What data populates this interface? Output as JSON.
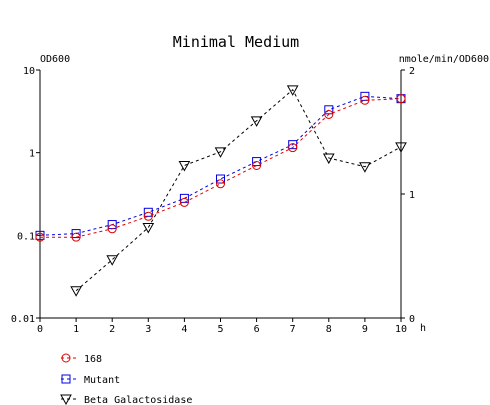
{
  "chart_data": {
    "type": "line",
    "title": "Minimal Medium",
    "xlabel": "h",
    "ylabel_left": "OD600",
    "ylabel_right": "nmole/min/OD600",
    "x_ticks": [
      "0",
      "1",
      "2",
      "3",
      "4",
      "5",
      "6",
      "7",
      "8",
      "9",
      "10"
    ],
    "y_left_ticks": [
      "10",
      "1",
      "0.1",
      "0.01"
    ],
    "y_right_ticks": [
      "2",
      "1",
      "0"
    ],
    "xlim": [
      0,
      10
    ],
    "ylim_left": [
      0.01,
      10
    ],
    "y_left_scale": "log",
    "ylim_right": [
      0,
      2
    ],
    "grid": false,
    "legend_placement": "bottom-left",
    "series": [
      {
        "name": "168",
        "axis": "left",
        "color": "#e00000",
        "marker": "circle",
        "x": [
          0,
          1,
          2,
          3,
          4,
          5,
          6,
          7,
          8,
          9,
          10
        ],
        "values": [
          0.095,
          0.095,
          0.12,
          0.17,
          0.25,
          0.42,
          0.7,
          1.15,
          2.9,
          4.3,
          4.5
        ]
      },
      {
        "name": "Mutant",
        "axis": "left",
        "color": "#0000e0",
        "marker": "square",
        "x": [
          0,
          1,
          2,
          3,
          4,
          5,
          6,
          7,
          8,
          9,
          10
        ],
        "values": [
          0.1,
          0.105,
          0.135,
          0.19,
          0.28,
          0.48,
          0.78,
          1.25,
          3.3,
          4.8,
          4.5
        ]
      },
      {
        "name": "Beta Galactosidase",
        "axis": "right",
        "color": "#000000",
        "marker": "triangle-down",
        "x": [
          1,
          2,
          3,
          4,
          5,
          6,
          7,
          8,
          9,
          10
        ],
        "values": [
          0.22,
          0.47,
          0.73,
          1.23,
          1.34,
          1.59,
          1.84,
          1.29,
          1.22,
          1.38
        ]
      }
    ]
  }
}
